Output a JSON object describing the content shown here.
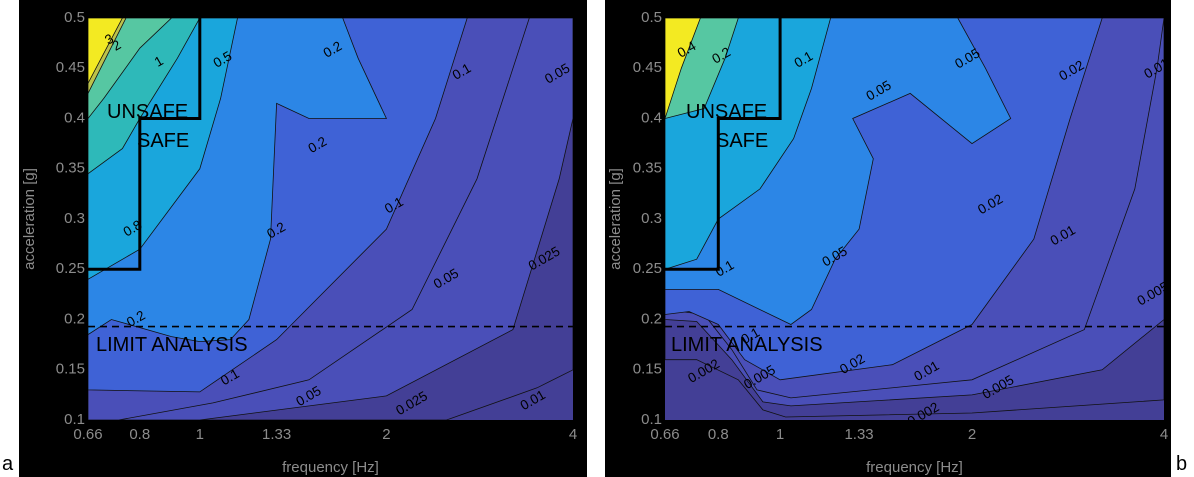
{
  "colors": {
    "frame": "#000000",
    "fill_levels": [
      "#433f96",
      "#4a4fb8",
      "#3f62d6",
      "#2c86e6",
      "#1aa6dc",
      "#2eb9b9",
      "#56c7a2",
      "#bcc34a",
      "#f3ea22"
    ],
    "contour_line": "#111111",
    "tick_text": "#8c8c8c"
  },
  "chart_data": [
    {
      "type": "contour",
      "panel_label": "a",
      "xlabel": "frequency [Hz]",
      "ylabel": "acceleration [g]",
      "x_scale": "log",
      "xlim": [
        0.66,
        4
      ],
      "ylim": [
        0.1,
        0.5
      ],
      "x_ticks": [
        0.66,
        0.8,
        1,
        1.33,
        2,
        4
      ],
      "x_tick_labels": [
        "0.66",
        "0.8",
        "1",
        "1.33",
        "2",
        "4"
      ],
      "y_ticks": [
        0.1,
        0.15,
        0.2,
        0.25,
        0.3,
        0.35,
        0.4,
        0.45,
        0.5
      ],
      "y_tick_labels": [
        "0.1",
        "0.15",
        "0.2",
        "0.25",
        "0.3",
        "0.35",
        "0.4",
        "0.45",
        "0.5"
      ],
      "limit_line": {
        "y": 0.193,
        "label": "LIMIT ANALYSIS"
      },
      "safe_boundary": {
        "points": [
          [
            0.66,
            0.25
          ],
          [
            0.8,
            0.25
          ],
          [
            0.8,
            0.4
          ],
          [
            1,
            0.4
          ],
          [
            1,
            0.5
          ]
        ],
        "unsafe_label": "UNSAFE",
        "safe_label": "SAFE"
      },
      "contours": [
        {
          "level": "3",
          "fill_index": 8,
          "points": [
            [
              0.66,
              0.5
            ],
            [
              0.66,
              0.435
            ],
            [
              0.75,
              0.5
            ]
          ]
        },
        {
          "level": "2",
          "fill_index": 7,
          "points": [
            [
              0.66,
              0.5
            ],
            [
              0.66,
              0.425
            ],
            [
              0.76,
              0.5
            ]
          ]
        },
        {
          "level": "1",
          "fill_index": 6,
          "points": [
            [
              0.66,
              0.5
            ],
            [
              0.66,
              0.4
            ],
            [
              0.7,
              0.42
            ],
            [
              0.8,
              0.47
            ],
            [
              0.9,
              0.5
            ]
          ]
        },
        {
          "level": "0.8",
          "fill_index": 5,
          "points": [
            [
              0.66,
              0.5
            ],
            [
              0.66,
              0.345
            ],
            [
              0.75,
              0.37
            ],
            [
              0.8,
              0.4
            ],
            [
              0.92,
              0.46
            ],
            [
              1,
              0.5
            ]
          ]
        },
        {
          "level": "0.5",
          "fill_index": 4,
          "points": [
            [
              0.66,
              0.5
            ],
            [
              0.66,
              0.24
            ],
            [
              0.8,
              0.27
            ],
            [
              1,
              0.35
            ],
            [
              1.08,
              0.42
            ],
            [
              1.15,
              0.5
            ]
          ]
        },
        {
          "level": "0.2",
          "fill_index": 3,
          "points": [
            [
              0.66,
              0.5
            ],
            [
              0.66,
              0.185
            ],
            [
              0.72,
              0.2
            ],
            [
              0.9,
              0.183
            ],
            [
              1,
              0.178
            ],
            [
              1.12,
              0.18
            ],
            [
              1.2,
              0.2
            ],
            [
              1.3,
              0.28
            ],
            [
              1.33,
              0.415
            ],
            [
              1.5,
              0.4
            ],
            [
              2,
              0.4
            ],
            [
              1.8,
              0.46
            ],
            [
              1.7,
              0.5
            ]
          ]
        },
        {
          "level": "0.1",
          "fill_index": 2,
          "points": [
            [
              0.66,
              0.5
            ],
            [
              0.66,
              0.13
            ],
            [
              1,
              0.128
            ],
            [
              1.33,
              0.18
            ],
            [
              2,
              0.29
            ],
            [
              2.4,
              0.4
            ],
            [
              2.7,
              0.5
            ]
          ]
        },
        {
          "level": "0.05",
          "fill_index": 1,
          "points": [
            [
              0.66,
              0.5
            ],
            [
              0.66,
              0.1
            ],
            [
              0.74,
              0.1
            ],
            [
              1.05,
              0.117
            ],
            [
              1.5,
              0.14
            ],
            [
              2.2,
              0.21
            ],
            [
              2.8,
              0.34
            ],
            [
              3.4,
              0.5
            ]
          ]
        },
        {
          "level": "0.025",
          "fill_index": 1,
          "points": [
            [
              0.66,
              0.5
            ],
            [
              0.66,
              0.1
            ],
            [
              1,
              0.1
            ],
            [
              2,
              0.124
            ],
            [
              3.2,
              0.19
            ],
            [
              3.8,
              0.34
            ],
            [
              4,
              0.4
            ],
            [
              4,
              0.5
            ]
          ]
        },
        {
          "level": "0.01",
          "fill_index": 0,
          "points": [
            [
              0.66,
              0.5
            ],
            [
              0.66,
              0.1
            ],
            [
              2.5,
              0.1
            ],
            [
              3.5,
              0.132
            ],
            [
              4,
              0.15
            ],
            [
              4,
              0.5
            ]
          ]
        }
      ],
      "contour_labels": [
        {
          "text": "3",
          "x": 0.715,
          "y": 0.478
        },
        {
          "text": "2",
          "x": 0.735,
          "y": 0.472
        },
        {
          "text": "1",
          "x": 0.86,
          "y": 0.456
        },
        {
          "text": "0.5",
          "x": 1.09,
          "y": 0.458
        },
        {
          "text": "0.2",
          "x": 1.64,
          "y": 0.468
        },
        {
          "text": "0.2",
          "x": 1.55,
          "y": 0.373
        },
        {
          "text": "0.2",
          "x": 1.33,
          "y": 0.288
        },
        {
          "text": "0.2",
          "x": 0.79,
          "y": 0.2
        },
        {
          "text": "0.8",
          "x": 0.78,
          "y": 0.29
        },
        {
          "text": "0.1",
          "x": 2.65,
          "y": 0.446
        },
        {
          "text": "0.1",
          "x": 2.06,
          "y": 0.313
        },
        {
          "text": "0.1",
          "x": 1.12,
          "y": 0.142
        },
        {
          "text": "0.05",
          "x": 3.78,
          "y": 0.444
        },
        {
          "text": "0.05",
          "x": 2.5,
          "y": 0.24
        },
        {
          "text": "0.05",
          "x": 1.5,
          "y": 0.123
        },
        {
          "text": "0.025",
          "x": 3.6,
          "y": 0.26
        },
        {
          "text": "0.025",
          "x": 2.2,
          "y": 0.116
        },
        {
          "text": "0.01",
          "x": 3.45,
          "y": 0.119
        }
      ]
    },
    {
      "type": "contour",
      "panel_label": "b",
      "xlabel": "frequency [Hz]",
      "ylabel": "acceleration [g]",
      "x_scale": "log",
      "xlim": [
        0.66,
        4
      ],
      "ylim": [
        0.1,
        0.5
      ],
      "x_ticks": [
        0.66,
        0.8,
        1,
        1.33,
        2,
        4
      ],
      "x_tick_labels": [
        "0.66",
        "0.8",
        "1",
        "1.33",
        "2",
        "4"
      ],
      "y_ticks": [
        0.1,
        0.15,
        0.2,
        0.25,
        0.3,
        0.35,
        0.4,
        0.45,
        0.5
      ],
      "y_tick_labels": [
        "0.1",
        "0.15",
        "0.2",
        "0.25",
        "0.3",
        "0.35",
        "0.4",
        "0.45",
        "0.5"
      ],
      "limit_line": {
        "y": 0.193,
        "label": "LIMIT ANALYSIS"
      },
      "safe_boundary": {
        "points": [
          [
            0.66,
            0.25
          ],
          [
            0.8,
            0.25
          ],
          [
            0.8,
            0.4
          ],
          [
            1,
            0.4
          ],
          [
            1,
            0.5
          ]
        ],
        "unsafe_label": "UNSAFE",
        "safe_label": "SAFE"
      },
      "contours": [
        {
          "level": "0.4",
          "fill_index": 8,
          "points": [
            [
              0.66,
              0.5
            ],
            [
              0.66,
              0.4
            ],
            [
              0.7,
              0.45
            ],
            [
              0.75,
              0.5
            ]
          ]
        },
        {
          "level": "0.2",
          "fill_index": 6,
          "points": [
            [
              0.66,
              0.5
            ],
            [
              0.66,
              0.4
            ],
            [
              0.76,
              0.41
            ],
            [
              0.82,
              0.46
            ],
            [
              0.86,
              0.5
            ]
          ]
        },
        {
          "level": "0.1",
          "fill_index": 4,
          "points": [
            [
              0.66,
              0.5
            ],
            [
              0.66,
              0.25
            ],
            [
              0.74,
              0.26
            ],
            [
              0.8,
              0.3
            ],
            [
              0.93,
              0.33
            ],
            [
              1.05,
              0.38
            ],
            [
              1.12,
              0.43
            ],
            [
              1.2,
              0.5
            ]
          ]
        },
        {
          "level": "0.05",
          "fill_index": 3,
          "points": [
            [
              0.66,
              0.5
            ],
            [
              0.66,
              0.23
            ],
            [
              0.8,
              0.23
            ],
            [
              1.04,
              0.195
            ],
            [
              1.12,
              0.21
            ],
            [
              1.22,
              0.26
            ],
            [
              1.33,
              0.29
            ],
            [
              1.4,
              0.36
            ],
            [
              1.3,
              0.4
            ],
            [
              1.6,
              0.425
            ],
            [
              2,
              0.375
            ],
            [
              2.3,
              0.4
            ],
            [
              2.1,
              0.45
            ],
            [
              1.9,
              0.5
            ]
          ]
        },
        {
          "level": "0.02",
          "fill_index": 2,
          "points": [
            [
              0.66,
              0.5
            ],
            [
              0.66,
              0.205
            ],
            [
              0.72,
              0.208
            ],
            [
              0.8,
              0.195
            ],
            [
              0.88,
              0.16
            ],
            [
              1,
              0.14
            ],
            [
              1.5,
              0.155
            ],
            [
              2,
              0.195
            ],
            [
              2.5,
              0.28
            ],
            [
              2.85,
              0.4
            ],
            [
              3.2,
              0.5
            ]
          ]
        },
        {
          "level": "0.01",
          "fill_index": 1,
          "points": [
            [
              0.66,
              0.5
            ],
            [
              0.66,
              0.21
            ],
            [
              0.76,
              0.205
            ],
            [
              0.84,
              0.17
            ],
            [
              0.92,
              0.13
            ],
            [
              1.04,
              0.122
            ],
            [
              2,
              0.14
            ],
            [
              3,
              0.19
            ],
            [
              3.6,
              0.33
            ],
            [
              3.9,
              0.45
            ],
            [
              4,
              0.5
            ]
          ]
        },
        {
          "level": "0.005",
          "fill_index": 1,
          "points": [
            [
              0.66,
              0.5
            ],
            [
              0.66,
              0.2
            ],
            [
              0.74,
              0.198
            ],
            [
              0.84,
              0.16
            ],
            [
              0.94,
              0.118
            ],
            [
              1.04,
              0.114
            ],
            [
              2,
              0.125
            ],
            [
              3.2,
              0.15
            ],
            [
              4,
              0.2
            ],
            [
              4,
              0.5
            ]
          ]
        },
        {
          "level": "0.002",
          "fill_index": 0,
          "points": [
            [
              0.66,
              0.5
            ],
            [
              0.66,
              0.16
            ],
            [
              0.74,
              0.16
            ],
            [
              0.86,
              0.14
            ],
            [
              0.94,
              0.11
            ],
            [
              1.02,
              0.103
            ],
            [
              2,
              0.107
            ],
            [
              4,
              0.12
            ],
            [
              4,
              0.5
            ]
          ]
        }
      ],
      "contour_labels": [
        {
          "text": "0.4",
          "x": 0.715,
          "y": 0.468
        },
        {
          "text": "0.2",
          "x": 0.81,
          "y": 0.462
        },
        {
          "text": "0.1",
          "x": 1.09,
          "y": 0.458
        },
        {
          "text": "0.05",
          "x": 1.97,
          "y": 0.459
        },
        {
          "text": "0.05",
          "x": 1.43,
          "y": 0.427
        },
        {
          "text": "0.05",
          "x": 1.22,
          "y": 0.262
        },
        {
          "text": "0.02",
          "x": 2.87,
          "y": 0.447
        },
        {
          "text": "0.02",
          "x": 2.14,
          "y": 0.314
        },
        {
          "text": "0.02",
          "x": 1.3,
          "y": 0.155
        },
        {
          "text": "0.01",
          "x": 3.9,
          "y": 0.449
        },
        {
          "text": "0.01",
          "x": 2.78,
          "y": 0.283
        },
        {
          "text": "0.01",
          "x": 1.7,
          "y": 0.148
        },
        {
          "text": "0.1",
          "x": 0.82,
          "y": 0.25
        },
        {
          "text": "0.1",
          "x": 0.9,
          "y": 0.183
        },
        {
          "text": "0.005",
          "x": 3.85,
          "y": 0.225
        },
        {
          "text": "0.005",
          "x": 2.2,
          "y": 0.132
        },
        {
          "text": "0.005",
          "x": 0.93,
          "y": 0.142
        },
        {
          "text": "0.002",
          "x": 0.76,
          "y": 0.148
        },
        {
          "text": "0.002",
          "x": 1.68,
          "y": 0.105
        }
      ]
    }
  ]
}
